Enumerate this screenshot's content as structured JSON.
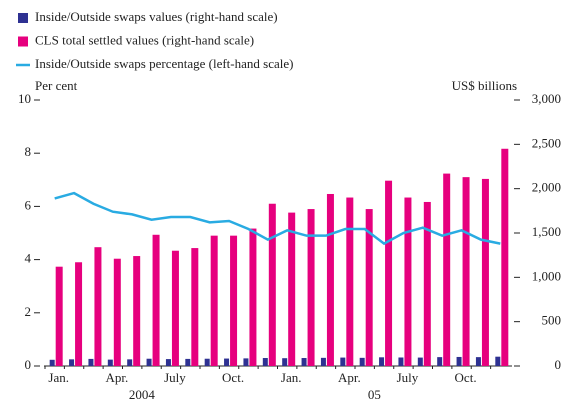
{
  "chart_data": {
    "type": "bar-line",
    "categories": [
      "Jan.",
      null,
      null,
      "Apr.",
      null,
      null,
      "July",
      null,
      null,
      "Oct.",
      null,
      null,
      "Jan.",
      null,
      null,
      "Apr.",
      null,
      null,
      "July",
      null,
      null,
      "Oct.",
      null,
      null
    ],
    "year_labels": [
      "2004",
      "05"
    ],
    "y_label": "Per cent",
    "y2_label": "US$ billions",
    "series": [
      {
        "name": "Inside/Outside swaps values (right-hand scale)",
        "color": "#2e3192",
        "type": "bar",
        "axis": "y2",
        "values": [
          70,
          75,
          80,
          72,
          75,
          82,
          78,
          80,
          82,
          84,
          86,
          90,
          88,
          90,
          92,
          95,
          92,
          98,
          96,
          95,
          100,
          102,
          100,
          105
        ]
      },
      {
        "name": "CLS total settled values (right-hand scale)",
        "color": "#e6007e",
        "type": "bar",
        "axis": "y2",
        "values": [
          1120,
          1170,
          1340,
          1210,
          1240,
          1480,
          1300,
          1330,
          1470,
          1470,
          1550,
          1830,
          1730,
          1770,
          1940,
          1900,
          1770,
          2090,
          1900,
          1850,
          2170,
          2130,
          2110,
          2450
        ]
      },
      {
        "name": "Inside/Outside swaps percentage (left-hand scale)",
        "color": "#29abe2",
        "type": "line",
        "axis": "y",
        "values": [
          6.3,
          6.5,
          6.1,
          5.8,
          5.7,
          5.5,
          5.6,
          5.6,
          5.4,
          5.45,
          5.15,
          4.75,
          5.1,
          4.9,
          4.9,
          5.15,
          5.15,
          4.6,
          5.0,
          5.2,
          4.9,
          5.1,
          4.75,
          4.6
        ]
      }
    ],
    "ylim": [
      0,
      10
    ],
    "yticks": [
      0,
      2,
      4,
      6,
      8,
      10
    ],
    "y2lim": [
      0,
      3000
    ],
    "y2ticks": [
      0,
      500,
      {
        "value": 1000,
        "label": "1,000"
      },
      {
        "value": 1500,
        "label": "1,500"
      },
      {
        "value": 2000,
        "label": "2,000"
      },
      {
        "value": 2500,
        "label": "2,500"
      },
      {
        "value": 3000,
        "label": "3,000"
      }
    ]
  }
}
